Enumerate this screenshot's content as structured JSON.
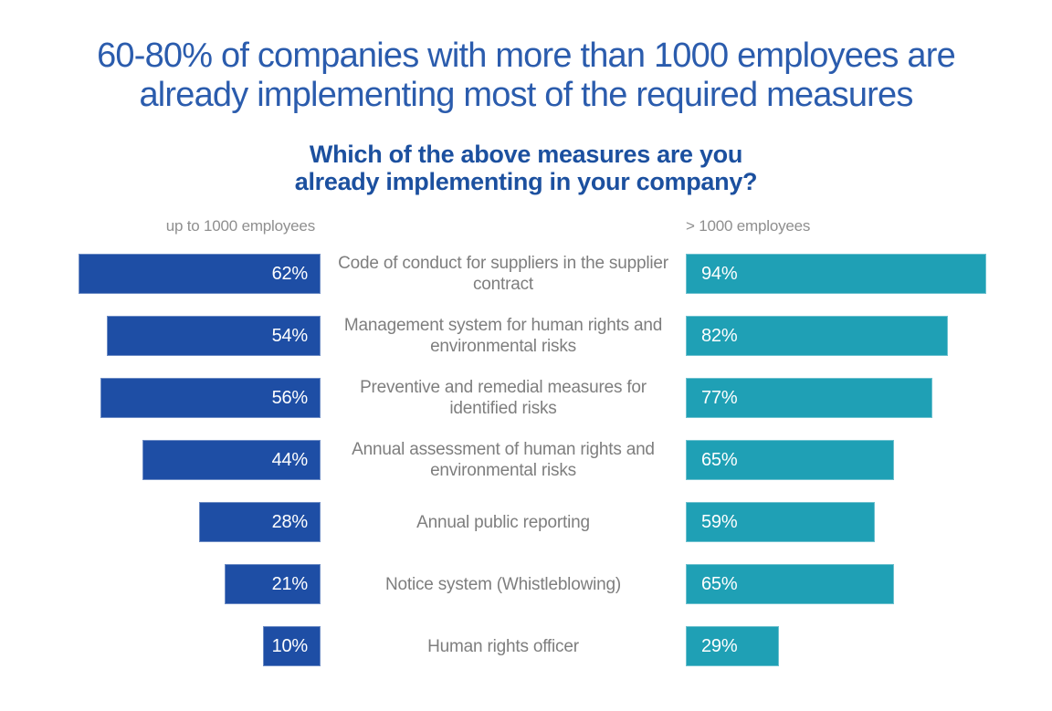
{
  "page": {
    "title_lines": [
      "60-80% of companies with more than 1000 employees are",
      "already implementing most of the required measures"
    ],
    "subtitle_lines": [
      "Which of the above measures are you",
      "already implementing in your company?"
    ]
  },
  "chart_data": {
    "type": "bar",
    "orientation": "horizontal-paired",
    "title": "Which of the above measures are you already implementing in your company?",
    "categories": [
      "Code of conduct for suppliers in the supplier contract",
      "Management system for human rights and environmental risks",
      "Preventive and remedial measures for identified risks",
      "Annual assessment of human rights and environmental risks",
      "Annual public reporting",
      "Notice system (Whistleblowing)",
      "Human rights officer"
    ],
    "series": [
      {
        "name": "up to 1000 employees",
        "values": [
          62,
          54,
          56,
          44,
          28,
          21,
          10
        ],
        "color": "#1e4ea5"
      },
      {
        "name": "> 1000 employees",
        "values": [
          94,
          82,
          77,
          65,
          59,
          65,
          29
        ],
        "color": "#1fa0b5"
      }
    ],
    "value_format": "percent",
    "xlim": [
      0,
      100
    ],
    "grid": false,
    "legend_position": "column-headers-above",
    "value_labels": "inside-bar-end"
  },
  "colors": {
    "background": "#ffffff",
    "title": "#2b5cad",
    "subtitle": "#1c509f",
    "bar_left": "#1e4ea5",
    "bar_right": "#1fa0b5",
    "bar_value_text": "#ffffff",
    "category_label": "#7e7e7e",
    "column_header": "#8f8f8f"
  }
}
